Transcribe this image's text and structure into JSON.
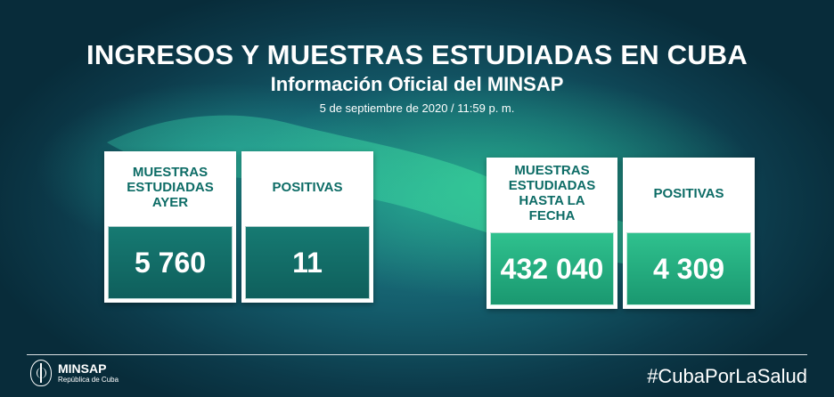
{
  "header": {
    "title": "INGRESOS Y MUESTRAS ESTUDIADAS EN CUBA",
    "subtitle": "Información Oficial del MINSAP",
    "date": "5 de septiembre de 2020 / 11:59 p. m."
  },
  "cards": [
    {
      "label": "MUESTRAS ESTUDIADAS AYER",
      "value": "5 760"
    },
    {
      "label": "POSITIVAS",
      "value": "11"
    },
    {
      "label": "MUESTRAS ESTUDIADAS HASTA LA FECHA",
      "value": "432 040"
    },
    {
      "label": "POSITIVAS",
      "value": "4 309"
    }
  ],
  "footer": {
    "logo_name": "MINSAP",
    "logo_sub": "República de Cuba",
    "hashtag": "#CubaPorLaSalud"
  },
  "colors": {
    "background": "#145d6c",
    "label_text": "#0d6c66",
    "dark_value_box": "#167a72",
    "light_value_box": "#2fc18e"
  },
  "icons": {
    "logo": "minsap-caduceus-icon"
  }
}
